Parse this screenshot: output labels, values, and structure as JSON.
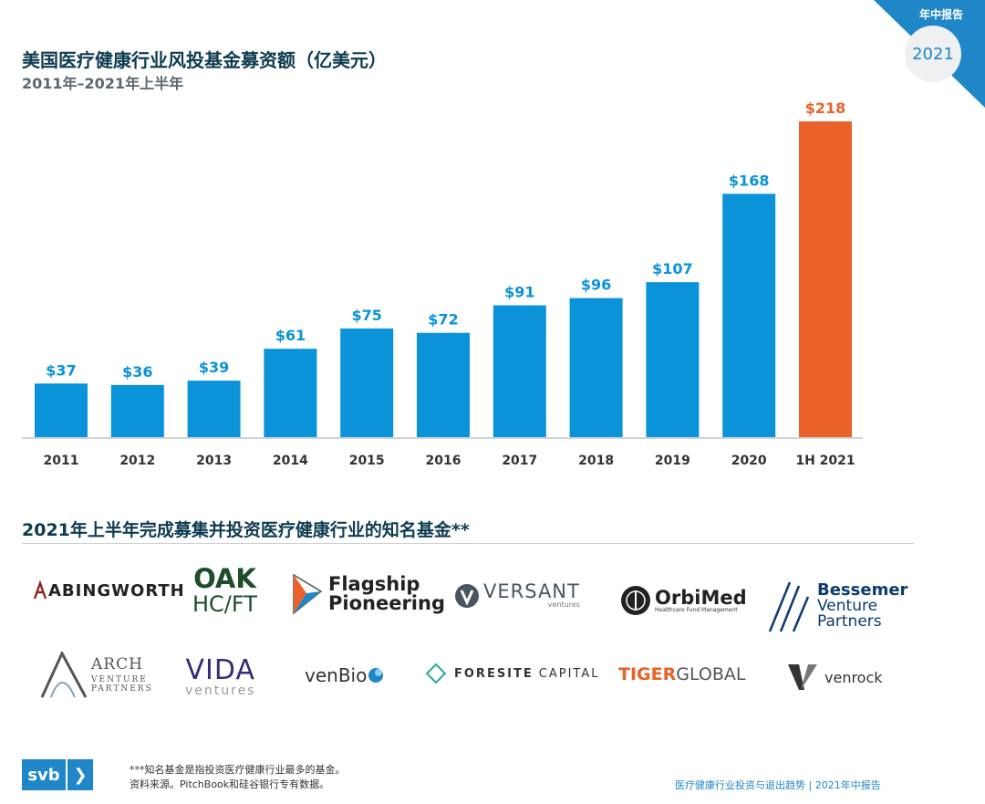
{
  "corner": {
    "label": "年中报告",
    "year": "2021"
  },
  "header": {
    "title": "美国医疗健康行业风投基金募资额（亿美元）",
    "subtitle": "2011年–2021年上半年"
  },
  "colors": {
    "bar": "#0a93d8",
    "highlight": "#e8622a",
    "text_dark": "#0d3b4f",
    "accent": "#1f86c8"
  },
  "chart_data": {
    "type": "bar",
    "title": "美国医疗健康行业风投基金募资额（亿美元）",
    "subtitle": "2011年–2021年上半年",
    "categories": [
      "2011",
      "2012",
      "2013",
      "2014",
      "2015",
      "2016",
      "2017",
      "2018",
      "2019",
      "2020",
      "1H 2021"
    ],
    "values": [
      37,
      36,
      39,
      61,
      75,
      72,
      91,
      96,
      107,
      168,
      218
    ],
    "labels": [
      "$37",
      "$36",
      "$39",
      "$61",
      "$75",
      "$72",
      "$91",
      "$96",
      "$107",
      "$168",
      "$218"
    ],
    "highlight_index": 10,
    "ylim": [
      0,
      218
    ],
    "xlabel": "",
    "ylabel": "",
    "grid": false
  },
  "funds": {
    "title": "2021年上半年完成募集并投资医疗健康行业的知名基金**",
    "abingworth": "ABINGWORTH",
    "oak_line1": "OAK",
    "oak_line2": "HC/FT",
    "flagship_line1": "Flagship",
    "flagship_line2": "Pioneering",
    "versant": "VERSANT",
    "versant_sub": "ventures",
    "orbimed": "OrbiMed",
    "orbimed_sub": "Healthcare Fund Management",
    "bessemer_line1": "Bessemer",
    "bessemer_line2": "Venture",
    "bessemer_line3": "Partners",
    "arch": "ARCH",
    "arch_line2": "VENTURE",
    "arch_line3": "PARTNERS",
    "vida": "VIDA",
    "vida_sub": "ventures",
    "venbio": "venBio",
    "foresite_a": "FORESITE",
    "foresite_b": "CAPITAL",
    "tiger_a": "TIGER",
    "tiger_b": "GLOBAL",
    "venrock": "venrock"
  },
  "footer": {
    "logo_text": "svb",
    "note1": "***知名基金是指投资医疗健康行业最多的基金。",
    "note2": "资料来源。PitchBook和硅谷银行专有数据。",
    "report": "医疗健康行业投资与退出趋势 | 2021年中报告"
  }
}
